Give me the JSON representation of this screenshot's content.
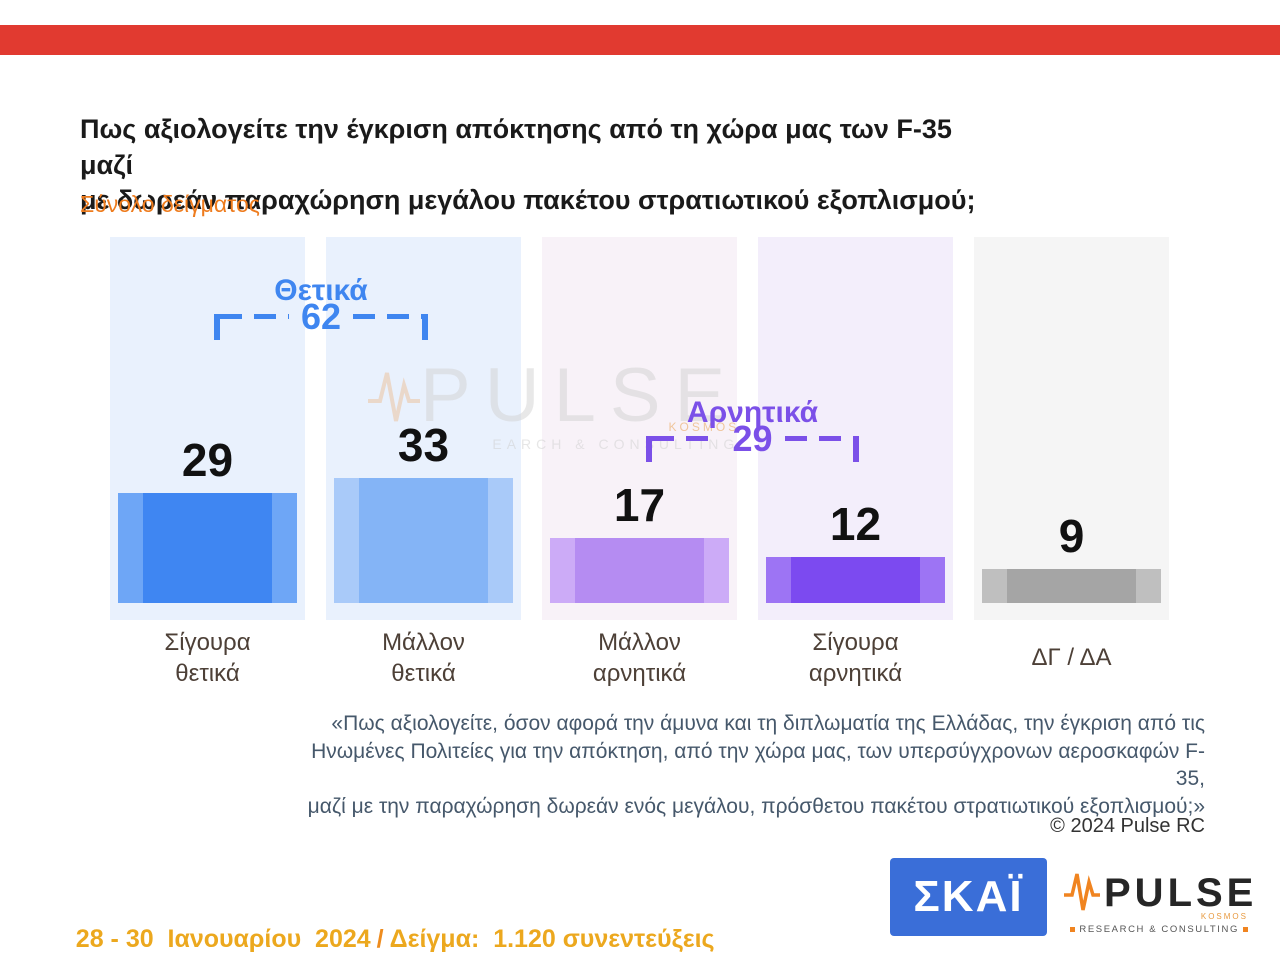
{
  "slide": {
    "title": "Πως αξιολογείτε την έγκριση απόκτησης από τη χώρα μας των F-35 μαζί\nμε δωρεάν παραχώρηση μεγάλου πακέτου στρατιωτικού εξοπλισμού;",
    "subtitle": "Σύνολο δείγματος",
    "footnote": "«Πως αξιολογείτε, όσον αφορά την άμυνα και τη διπλωματία της Ελλάδας, την έγκριση από τις\nΗνωμένες Πολιτείες για την απόκτηση, από την χώρα μας, των υπερσύγχρονων αεροσκαφών F-35,\nμαζί με την παραχώρηση δωρεάν ενός μεγάλου, πρόσθετου πακέτου στρατιωτικού εξοπλισμού;»",
    "copyright": "© 2024 Pulse RC",
    "date_range": "28 - 30  Ιανουαρίου  2024",
    "date_separator": "/",
    "sample_info": "Δείγμα:  1.120 συνεντεύξεις"
  },
  "chart_data": {
    "type": "bar",
    "title": "Πως αξιολογείτε την έγκριση απόκτησης από τη χώρα μας των F-35 μαζί με δωρεάν παραχώρηση μεγάλου πακέτου στρατιωτικού εξοπλισμού;",
    "subtitle": "Σύνολο δείγματος",
    "categories": [
      "Σίγουρα\nθετικά",
      "Μάλλον\nθετικά",
      "Μάλλον\nαρνητικά",
      "Σίγουρα\nαρνητικά",
      "ΔΓ / ΔΑ"
    ],
    "values": [
      29,
      33,
      17,
      12,
      9
    ],
    "ylim": [
      0,
      100
    ],
    "grid": false,
    "value_labels": true,
    "bar_colors": [
      "#3f86f2",
      "#84b4f6",
      "#b58cf2",
      "#7c4af0",
      "#a5a5a5"
    ],
    "bar_edge_colors": [
      "#6ea6f6",
      "#a9caf9",
      "#ccabf7",
      "#9d74f4",
      "#bfbfbf"
    ],
    "panel_colors": [
      "#e9f1fd",
      "#e9f1fd",
      "#f8f2f8",
      "#f3eefb",
      "#f5f5f5"
    ],
    "groups": [
      {
        "label": "Θετικά",
        "value": 62,
        "color": "#3f86f0",
        "spans": [
          "Σίγουρα θετικά",
          "Μάλλον θετικά"
        ]
      },
      {
        "label": "Αρνητικά",
        "value": 29,
        "color": "#7b50e8",
        "spans": [
          "Μάλλον αρνητικά",
          "Σίγουρα αρνητικά"
        ]
      }
    ]
  },
  "watermark": {
    "text": "PULSE",
    "subtext": "EARCH & CONSULTING",
    "kosmos": "KOSMOS"
  },
  "logos": {
    "skai": "ΣΚΑΪ",
    "pulse": "PULSE",
    "pulse_sub": "RESEARCH & CONSULTING",
    "pulse_kosmos": "KOSMOS"
  }
}
